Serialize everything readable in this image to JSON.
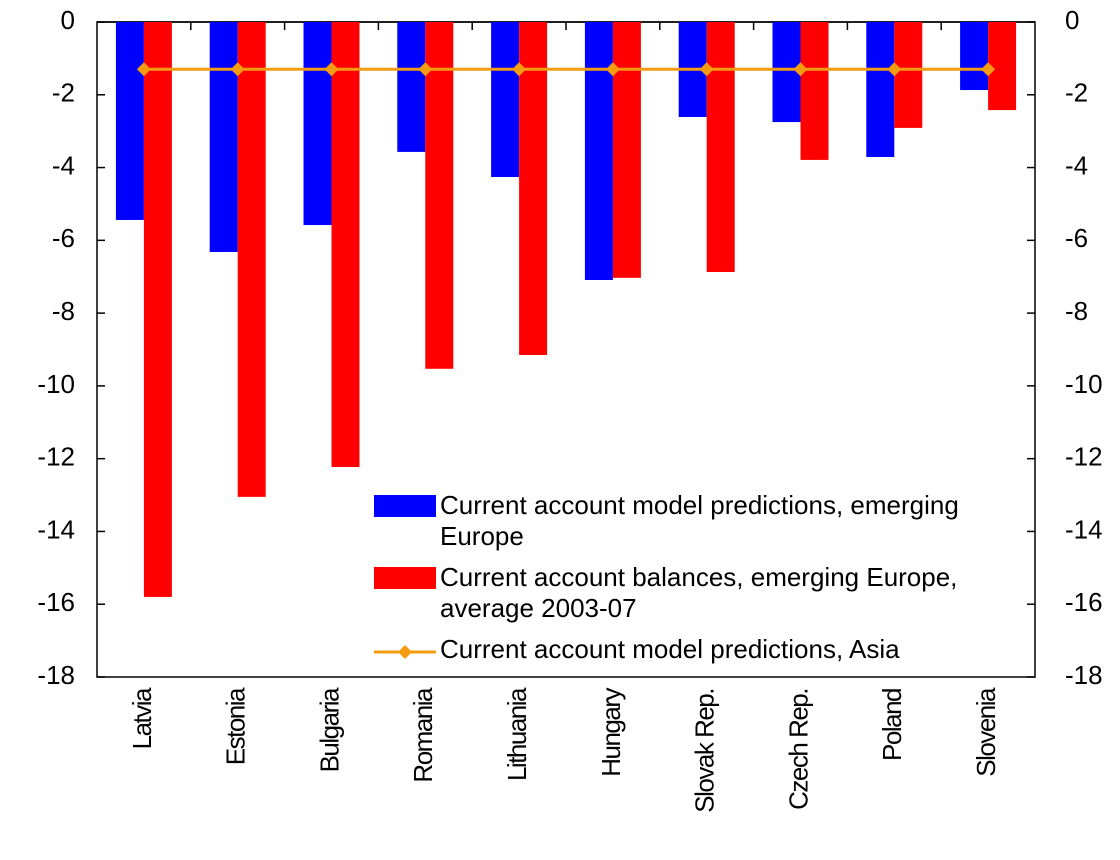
{
  "chart_data": {
    "type": "bar",
    "categories": [
      "Latvia",
      "Estonia",
      "Bulgaria",
      "Romania",
      "Lithuania",
      "Hungary",
      "Slovak Rep.",
      "Czech Rep.",
      "Poland",
      "Slovenia"
    ],
    "series": [
      {
        "name": "Current account model predictions, emerging Europe",
        "type": "bar",
        "color": "#0000ff",
        "values": [
          -5.44,
          -6.32,
          -5.58,
          -3.57,
          -4.26,
          -7.09,
          -2.61,
          -2.75,
          -3.71,
          -1.87
        ]
      },
      {
        "name": "Current account balances, emerging Europe, average 2003-07",
        "type": "bar",
        "color": "#ff0000",
        "values": [
          -15.8,
          -13.05,
          -12.23,
          -9.53,
          -9.15,
          -7.03,
          -6.87,
          -3.79,
          -2.91,
          -2.42
        ]
      },
      {
        "name": "Current account model predictions, Asia",
        "type": "line",
        "color": "#f39c12",
        "values": [
          -1.3,
          -1.3,
          -1.3,
          -1.3,
          -1.3,
          -1.3,
          -1.3,
          -1.3,
          -1.3,
          -1.3
        ]
      }
    ],
    "ylim": [
      -18,
      0
    ],
    "yticks": [
      0,
      -2,
      -4,
      -6,
      -8,
      -10,
      -12,
      -14,
      -16,
      -18
    ],
    "y2lim": [
      -18,
      0
    ],
    "y2ticks": [
      0,
      -2,
      -4,
      -6,
      -8,
      -10,
      -12,
      -14,
      -16,
      -18
    ],
    "grid": false,
    "legend": "lower right"
  }
}
